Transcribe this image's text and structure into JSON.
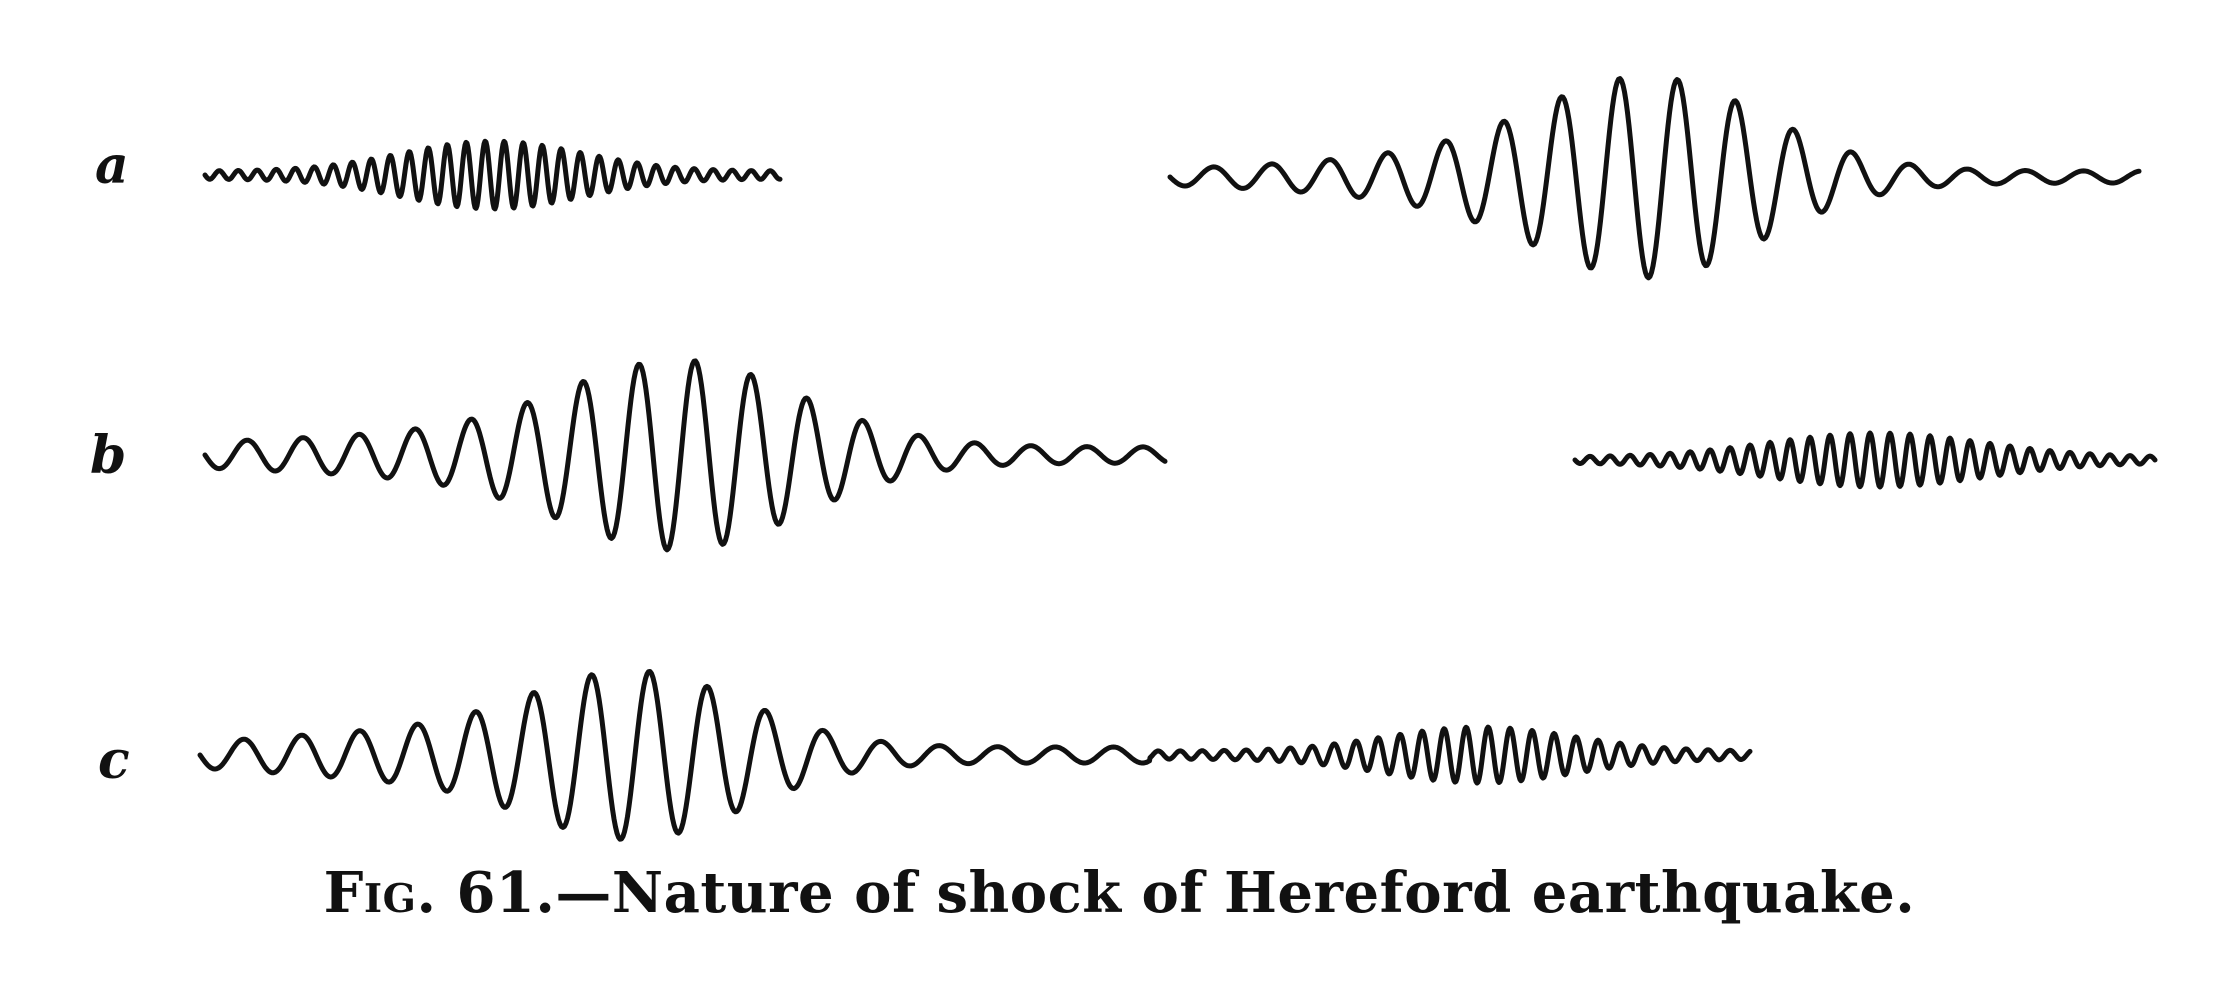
{
  "figure": {
    "row_labels": {
      "a": "a",
      "b": "b",
      "c": "c"
    },
    "caption": {
      "prefix": "Fig. 61.",
      "text": "—Nature of shock of Hereford earthquake."
    },
    "traces": [
      {
        "row": "a",
        "name": "trace-a-left",
        "envelope": "small-rising-falling"
      },
      {
        "row": "a",
        "name": "trace-a-right",
        "envelope": "large-central-peak"
      },
      {
        "row": "b",
        "name": "trace-b-left",
        "envelope": "large-central-peak"
      },
      {
        "row": "b",
        "name": "trace-b-right",
        "envelope": "small-rising-falling"
      },
      {
        "row": "c",
        "name": "trace-c",
        "envelope": "large-peak-then-small-train"
      }
    ],
    "colors": {
      "ink": "#111111",
      "paper": "#ffffff"
    }
  }
}
